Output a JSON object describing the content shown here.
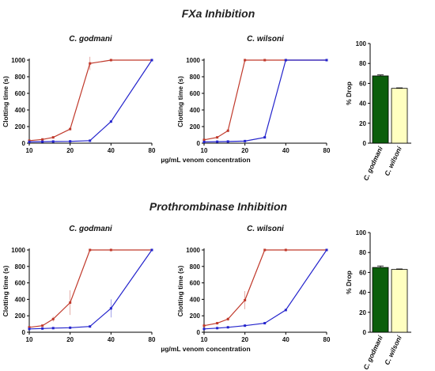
{
  "sections": [
    {
      "title": "FXa Inhibition",
      "panels": [
        {
          "title": "C. godmani",
          "xlabel": "µg/mL venom concentration",
          "ylabel": "Clotting time (s)",
          "xticks": [
            10,
            20,
            40,
            80
          ],
          "yticks": [
            0,
            200,
            400,
            600,
            800,
            1000
          ],
          "series": [
            {
              "color": "#c0392b",
              "x": [
                10,
                12.5,
                15,
                20,
                28,
                40,
                80
              ],
              "y": [
                30,
                45,
                70,
                170,
                960,
                1000,
                1000
              ],
              "err": [
                5,
                5,
                10,
                10,
                80,
                0,
                0
              ]
            },
            {
              "color": "#2323cc",
              "x": [
                10,
                12.5,
                15,
                20,
                28,
                40,
                80
              ],
              "y": [
                15,
                18,
                20,
                22,
                30,
                260,
                1000
              ],
              "err": [
                2,
                2,
                2,
                3,
                3,
                10,
                0
              ]
            }
          ]
        },
        {
          "title": "C. wilsoni",
          "xlabel": "µg/mL venom concentration",
          "ylabel": "Clotting time (s)",
          "xticks": [
            10,
            20,
            40,
            80
          ],
          "yticks": [
            0,
            200,
            400,
            600,
            800,
            1000
          ],
          "series": [
            {
              "color": "#c0392b",
              "x": [
                10,
                12.5,
                15,
                20,
                28,
                40,
                80
              ],
              "y": [
                40,
                70,
                150,
                1000,
                1000,
                1000,
                1000
              ],
              "err": [
                5,
                10,
                15,
                0,
                0,
                0,
                0
              ]
            },
            {
              "color": "#2323cc",
              "x": [
                10,
                12.5,
                15,
                20,
                28,
                40,
                80
              ],
              "y": [
                15,
                18,
                20,
                25,
                70,
                1000,
                1000
              ],
              "err": [
                2,
                2,
                2,
                3,
                5,
                0,
                0
              ]
            }
          ]
        }
      ],
      "bar": {
        "ylabel": "% Drop",
        "yticks": [
          0,
          20,
          40,
          60,
          80,
          100
        ],
        "categories": [
          "C. godmani",
          "C. wilsoni"
        ],
        "values": [
          67.5,
          55
        ],
        "err": [
          1,
          0.5
        ],
        "colors": [
          "#0b5e0b",
          "#ffffc0"
        ]
      }
    },
    {
      "title": "Prothrombinase Inhibition",
      "panels": [
        {
          "title": "C. godmani",
          "xlabel": "µg/mL venom concentration",
          "ylabel": "Clotting time (s)",
          "xticks": [
            10,
            20,
            40,
            80
          ],
          "yticks": [
            0,
            200,
            400,
            600,
            800,
            1000
          ],
          "series": [
            {
              "color": "#c0392b",
              "x": [
                10,
                12.5,
                15,
                20,
                28,
                40,
                80
              ],
              "y": [
                60,
                80,
                160,
                360,
                1000,
                1000,
                1000
              ],
              "err": [
                10,
                10,
                30,
                150,
                0,
                0,
                0
              ]
            },
            {
              "color": "#2323cc",
              "x": [
                10,
                12.5,
                15,
                20,
                28,
                40,
                80
              ],
              "y": [
                40,
                45,
                50,
                55,
                70,
                290,
                1000
              ],
              "err": [
                3,
                3,
                3,
                5,
                5,
                110,
                0
              ]
            }
          ]
        },
        {
          "title": "C. wilsoni",
          "xlabel": "µg/mL venom concentration",
          "ylabel": "Clotting time (s)",
          "xticks": [
            10,
            20,
            40,
            80
          ],
          "yticks": [
            0,
            200,
            400,
            600,
            800,
            1000
          ],
          "series": [
            {
              "color": "#c0392b",
              "x": [
                10,
                12.5,
                15,
                20,
                28,
                40,
                80
              ],
              "y": [
                80,
                110,
                160,
                390,
                1000,
                1000,
                1000
              ],
              "err": [
                10,
                15,
                20,
                110,
                0,
                0,
                0
              ]
            },
            {
              "color": "#2323cc",
              "x": [
                10,
                12.5,
                15,
                20,
                28,
                40,
                80
              ],
              "y": [
                40,
                50,
                60,
                80,
                110,
                270,
                1000
              ],
              "err": [
                3,
                3,
                4,
                5,
                5,
                10,
                0
              ]
            }
          ]
        }
      ],
      "bar": {
        "ylabel": "% Drop",
        "yticks": [
          0,
          20,
          40,
          60,
          80,
          100
        ],
        "categories": [
          "C. godmani",
          "C. wilsoni"
        ],
        "values": [
          65,
          63
        ],
        "err": [
          1.5,
          0.5
        ],
        "colors": [
          "#0b5e0b",
          "#ffffc0"
        ]
      }
    }
  ],
  "chart_data": [
    {
      "type": "line",
      "title": "C. godmani",
      "section": "FXa Inhibition",
      "xlabel": "µg/mL venom concentration",
      "ylabel": "Clotting time (s)",
      "xscale": "log",
      "ylim": [
        0,
        1000
      ],
      "x": [
        10,
        12.5,
        15,
        20,
        28,
        40,
        80
      ],
      "series": [
        {
          "values": [
            30,
            45,
            70,
            170,
            960,
            1000,
            1000
          ]
        },
        {
          "values": [
            15,
            18,
            20,
            22,
            30,
            260,
            1000
          ]
        }
      ]
    },
    {
      "type": "line",
      "title": "C. wilsoni",
      "section": "FXa Inhibition",
      "xlabel": "µg/mL venom concentration",
      "ylabel": "Clotting time (s)",
      "xscale": "log",
      "ylim": [
        0,
        1000
      ],
      "x": [
        10,
        12.5,
        15,
        20,
        28,
        40,
        80
      ],
      "series": [
        {
          "values": [
            40,
            70,
            150,
            1000,
            1000,
            1000,
            1000
          ]
        },
        {
          "values": [
            15,
            18,
            20,
            25,
            70,
            1000,
            1000
          ]
        }
      ]
    },
    {
      "type": "bar",
      "section": "FXa Inhibition",
      "ylabel": "% Drop",
      "ylim": [
        0,
        100
      ],
      "categories": [
        "C. godmani",
        "C. wilsoni"
      ],
      "values": [
        67.5,
        55
      ]
    },
    {
      "type": "line",
      "title": "C. godmani",
      "section": "Prothrombinase Inhibition",
      "xlabel": "µg/mL venom concentration",
      "ylabel": "Clotting time (s)",
      "xscale": "log",
      "ylim": [
        0,
        1000
      ],
      "x": [
        10,
        12.5,
        15,
        20,
        28,
        40,
        80
      ],
      "series": [
        {
          "values": [
            60,
            80,
            160,
            360,
            1000,
            1000,
            1000
          ]
        },
        {
          "values": [
            40,
            45,
            50,
            55,
            70,
            290,
            1000
          ]
        }
      ]
    },
    {
      "type": "line",
      "title": "C. wilsoni",
      "section": "Prothrombinase Inhibition",
      "xlabel": "µg/mL venom concentration",
      "ylabel": "Clotting time (s)",
      "xscale": "log",
      "ylim": [
        0,
        1000
      ],
      "x": [
        10,
        12.5,
        15,
        20,
        28,
        40,
        80
      ],
      "series": [
        {
          "values": [
            80,
            110,
            160,
            390,
            1000,
            1000,
            1000
          ]
        },
        {
          "values": [
            40,
            50,
            60,
            80,
            110,
            270,
            1000
          ]
        }
      ]
    },
    {
      "type": "bar",
      "section": "Prothrombinase Inhibition",
      "ylabel": "% Drop",
      "ylim": [
        0,
        100
      ],
      "categories": [
        "C. godmani",
        "C. wilsoni"
      ],
      "values": [
        65,
        63
      ]
    }
  ]
}
